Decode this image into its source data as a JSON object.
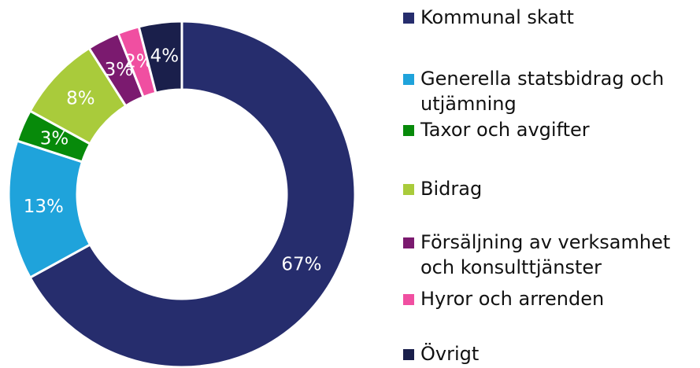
{
  "chart_data": {
    "type": "pie",
    "donut": true,
    "categories": [
      "Kommunal skatt",
      "Generella statsbidrag och utjämning",
      "Taxor och avgifter",
      "Bidrag",
      "Försäljning av verksamhet och konsulttjänster",
      "Hyror och arrenden",
      "Övrigt"
    ],
    "values": [
      67,
      13,
      3,
      8,
      3,
      2,
      4
    ],
    "value_labels": [
      "67%",
      "13%",
      "3%",
      "8%",
      "3%",
      "2%",
      "4%"
    ],
    "colors": [
      "#262d6d",
      "#1fa3db",
      "#078a0a",
      "#a9cb3b",
      "#7b1a6f",
      "#f04fa1",
      "#1a1f4b"
    ],
    "legend": "right"
  }
}
